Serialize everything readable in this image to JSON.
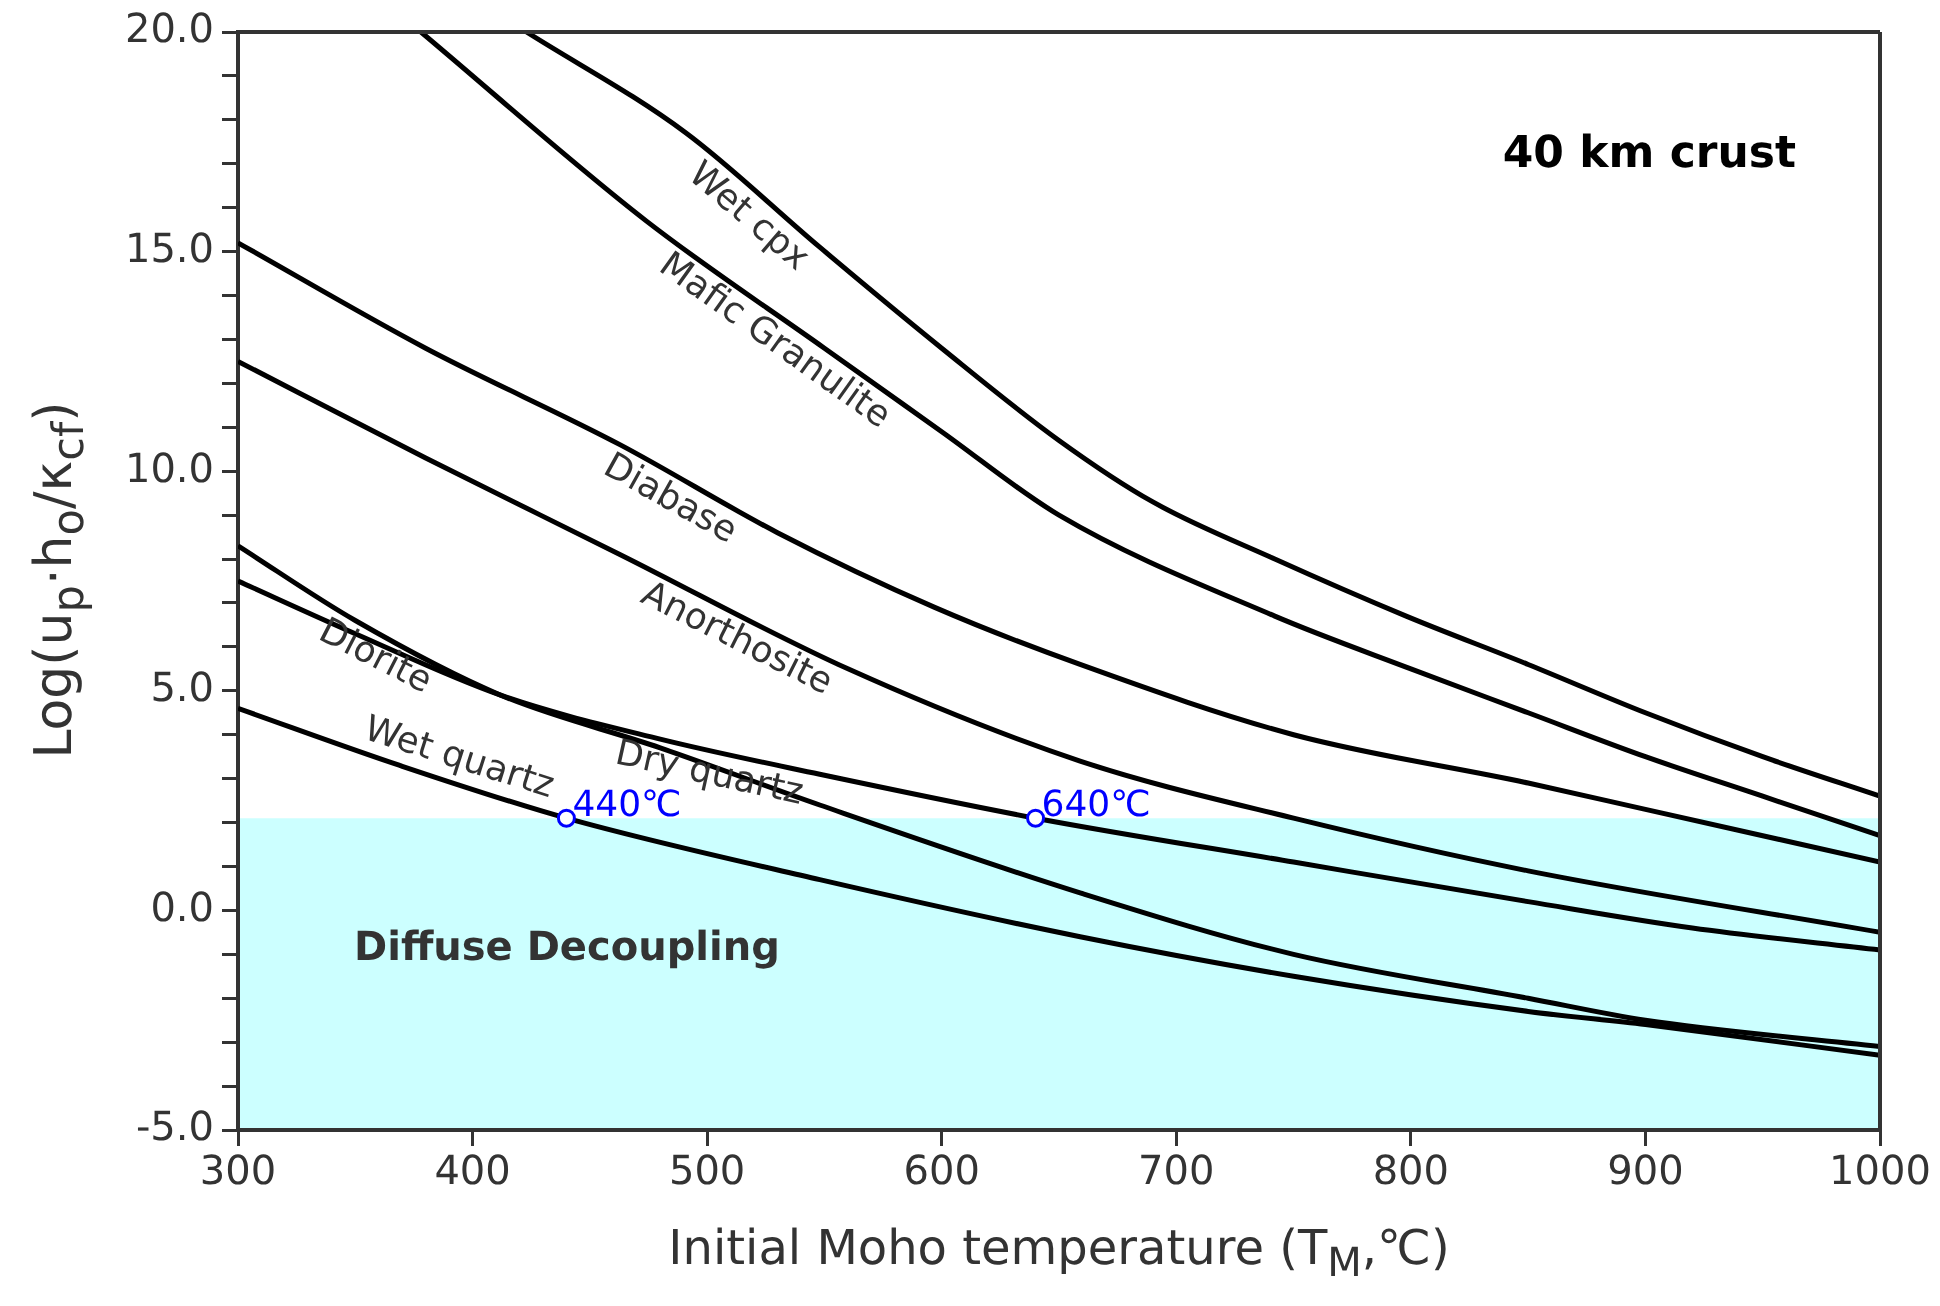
{
  "chart_data": {
    "type": "line",
    "xlabel": "Initial Moho temperature (T$_{M}$,℃)",
    "ylabel": "Log(u$_{p}$·h$_{o}$/κ$_{cf}$)",
    "xlim": [
      300,
      1000
    ],
    "xticks": [
      300,
      400,
      500,
      600,
      700,
      800,
      900,
      1000
    ],
    "ylim": [
      -5,
      20
    ],
    "yticks": [
      {
        "value": -5,
        "label": "-5.0"
      },
      {
        "value": -4,
        "label": null
      },
      {
        "value": -3,
        "label": null
      },
      {
        "value": -2,
        "label": null
      },
      {
        "value": -1,
        "label": null
      },
      {
        "value": 0,
        "label": "0.0"
      },
      {
        "value": 1,
        "label": null
      },
      {
        "value": 2,
        "label": null
      },
      {
        "value": 3,
        "label": null
      },
      {
        "value": 4,
        "label": null
      },
      {
        "value": 5,
        "label": "5.0"
      },
      {
        "value": 6,
        "label": null
      },
      {
        "value": 7,
        "label": null
      },
      {
        "value": 8,
        "label": null
      },
      {
        "value": 9,
        "label": null
      },
      {
        "value": 10,
        "label": "10.0"
      },
      {
        "value": 11,
        "label": null
      },
      {
        "value": 12,
        "label": null
      },
      {
        "value": 13,
        "label": null
      },
      {
        "value": 14,
        "label": null
      },
      {
        "value": 15,
        "label": "15.0"
      },
      {
        "value": 16,
        "label": null
      },
      {
        "value": 17,
        "label": null
      },
      {
        "value": 18,
        "label": null
      },
      {
        "value": 19,
        "label": null
      },
      {
        "value": 20,
        "label": "20.0"
      }
    ],
    "grid": false,
    "legend": false,
    "marker": "none",
    "line_style": "solid",
    "series": [
      {
        "name": "Wet cpx",
        "color": "#000000",
        "x": [
          423,
          491,
          548,
          600,
          650,
          690,
          742,
          798,
          850,
          900,
          950,
          1000
        ],
        "values": [
          20,
          17.7,
          15.1,
          12.8,
          10.7,
          9.3,
          8.0,
          6.7,
          5.6,
          4.5,
          3.5,
          2.6
        ]
      },
      {
        "name": "Mafic Granulite",
        "color": "#000000",
        "x": [
          378,
          474,
          550,
          600,
          650,
          742,
          800,
          850,
          900,
          950,
          1000
        ],
        "values": [
          20,
          15.7,
          12.8,
          10.9,
          9.0,
          6.7,
          5.5,
          4.5,
          3.5,
          2.6,
          1.7
        ]
      },
      {
        "name": "Diabase",
        "color": "#000000",
        "x": [
          300,
          380,
          463,
          530,
          597,
          659,
          750,
          850,
          900,
          1000
        ],
        "values": [
          15.2,
          12.8,
          10.6,
          8.6,
          6.9,
          5.6,
          4.0,
          2.9,
          2.3,
          1.1
        ]
      },
      {
        "name": "Anorthosite",
        "color": "#000000",
        "x": [
          300,
          380,
          463,
          560,
          659,
          750,
          850,
          1000
        ],
        "values": [
          12.5,
          10.3,
          8.1,
          5.5,
          3.4,
          2.1,
          0.9,
          -0.5
        ]
      },
      {
        "name": "Diorite",
        "color": "#000000",
        "x": [
          300,
          350,
          412,
          480,
          548,
          659,
          750,
          850,
          900,
          1000
        ],
        "values": [
          8.3,
          6.6,
          4.9,
          3.7,
          2.4,
          0.4,
          -1.0,
          -2.0,
          -2.5,
          -3.1
        ]
      },
      {
        "name": "Dry quartz",
        "color": "#000000",
        "x": [
          300,
          350,
          412,
          480,
          548,
          640,
          750,
          850,
          920,
          1000
        ],
        "values": [
          7.5,
          6.3,
          4.9,
          3.9,
          3.1,
          2.1,
          1.1,
          0.2,
          -0.4,
          -0.9
        ]
      },
      {
        "name": "Wet quartz",
        "color": "#000000",
        "x": [
          300,
          369,
          440,
          548,
          659,
          750,
          850,
          900,
          1000
        ],
        "values": [
          4.6,
          3.3,
          2.1,
          0.7,
          -0.6,
          -1.5,
          -2.3,
          -2.6,
          -3.3
        ]
      }
    ],
    "bands": [
      {
        "axis": "y",
        "from": -5,
        "to": 2.1,
        "label": "Diffuse Decoupling",
        "color": "#ccffff"
      }
    ],
    "annotations": [
      "40 km crust",
      {
        "text": "440℃",
        "x": 440,
        "y": 2.1
      },
      {
        "text": "640℃",
        "x": 640,
        "y": 2.1
      }
    ]
  }
}
